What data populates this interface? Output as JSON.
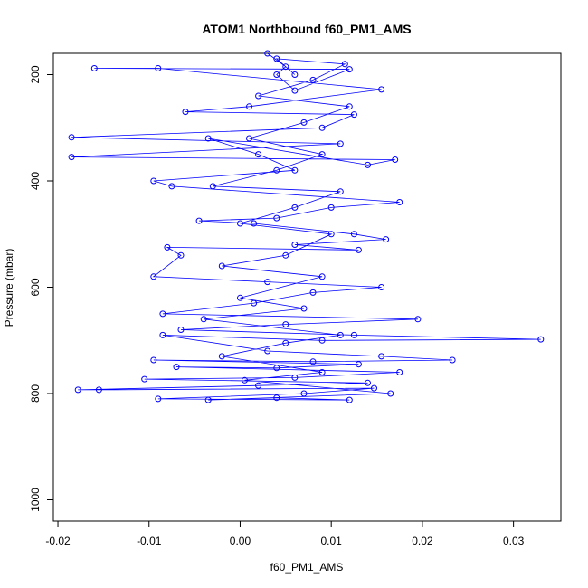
{
  "chart_data": {
    "type": "scatter",
    "title": "ATOM1 Northbound f60_PM1_AMS",
    "xlabel": "f60_PM1_AMS",
    "ylabel": "Pressure (mbar)",
    "xlim": [
      -0.0205,
      0.0352
    ],
    "ylim": [
      1040,
      160
    ],
    "y_reversed": true,
    "x_ticks": [
      {
        "value": -0.02,
        "label": "-0.02"
      },
      {
        "value": -0.01,
        "label": "-0.01"
      },
      {
        "value": 0.0,
        "label": "0.00"
      },
      {
        "value": 0.01,
        "label": "0.01"
      },
      {
        "value": 0.02,
        "label": "0.02"
      },
      {
        "value": 0.03,
        "label": "0.03"
      }
    ],
    "y_ticks": [
      {
        "value": 200,
        "label": "200"
      },
      {
        "value": 400,
        "label": "400"
      },
      {
        "value": 600,
        "label": "600"
      },
      {
        "value": 800,
        "label": "800"
      },
      {
        "value": 1000,
        "label": "1000"
      }
    ],
    "series_color": "#0000ff",
    "marker": "open-circle",
    "connected": true,
    "points": [
      [
        0.003,
        160
      ],
      [
        0.005,
        185
      ],
      [
        0.004,
        200
      ],
      [
        0.006,
        230
      ],
      [
        0.012,
        190
      ],
      [
        -0.016,
        188
      ],
      [
        -0.009,
        188
      ],
      [
        0.0155,
        228
      ],
      [
        0.001,
        260
      ],
      [
        -0.006,
        270
      ],
      [
        0.0125,
        275
      ],
      [
        0.009,
        300
      ],
      [
        -0.0185,
        318
      ],
      [
        0.011,
        330
      ],
      [
        -0.0185,
        355
      ],
      [
        0.017,
        360
      ],
      [
        0.014,
        370
      ],
      [
        -0.0035,
        320
      ],
      [
        0.002,
        350
      ],
      [
        0.006,
        380
      ],
      [
        -0.0095,
        400
      ],
      [
        -0.0075,
        410
      ],
      [
        0.0175,
        440
      ],
      [
        0.01,
        450
      ],
      [
        0.004,
        470
      ],
      [
        -0.0045,
        475
      ],
      [
        0.0015,
        480
      ],
      [
        0.0125,
        500
      ],
      [
        0.016,
        510
      ],
      [
        0.006,
        520
      ],
      [
        0.013,
        530
      ],
      [
        -0.008,
        525
      ],
      [
        -0.0065,
        540
      ],
      [
        -0.0095,
        580
      ],
      [
        0.003,
        590
      ],
      [
        0.0155,
        600
      ],
      [
        0.008,
        610
      ],
      [
        0.0015,
        630
      ],
      [
        -0.0085,
        650
      ],
      [
        0.0195,
        660
      ],
      [
        0.005,
        670
      ],
      [
        -0.0065,
        680
      ],
      [
        0.0125,
        690
      ],
      [
        0.033,
        698
      ],
      [
        0.009,
        700
      ],
      [
        -0.0085,
        690
      ],
      [
        0.003,
        720
      ],
      [
        0.0155,
        730
      ],
      [
        0.0233,
        737
      ],
      [
        0.008,
        740
      ],
      [
        -0.0095,
        737
      ],
      [
        0.013,
        745
      ],
      [
        0.004,
        752
      ],
      [
        -0.007,
        750
      ],
      [
        0.0175,
        760
      ],
      [
        0.006,
        770
      ],
      [
        -0.0105,
        773
      ],
      [
        0.014,
        780
      ],
      [
        0.002,
        785
      ],
      [
        -0.0178,
        793
      ],
      [
        -0.0155,
        793
      ],
      [
        0.0147,
        790
      ],
      [
        0.007,
        800
      ],
      [
        -0.009,
        810
      ],
      [
        0.012,
        812
      ],
      [
        0.004,
        808
      ],
      [
        -0.0035,
        812
      ],
      [
        0.0165,
        800
      ],
      [
        0.0005,
        775
      ],
      [
        0.009,
        760
      ],
      [
        -0.002,
        730
      ],
      [
        0.005,
        705
      ],
      [
        0.011,
        690
      ],
      [
        -0.004,
        660
      ],
      [
        0.007,
        640
      ],
      [
        0.0,
        620
      ],
      [
        0.009,
        580
      ],
      [
        -0.002,
        560
      ],
      [
        0.005,
        540
      ],
      [
        0.01,
        500
      ],
      [
        0.0,
        480
      ],
      [
        0.006,
        450
      ],
      [
        0.011,
        420
      ],
      [
        -0.003,
        410
      ],
      [
        0.004,
        380
      ],
      [
        0.009,
        350
      ],
      [
        0.001,
        320
      ],
      [
        0.007,
        290
      ],
      [
        0.012,
        260
      ],
      [
        0.002,
        240
      ],
      [
        0.008,
        210
      ],
      [
        0.0115,
        180
      ],
      [
        0.004,
        170
      ],
      [
        0.006,
        200
      ]
    ]
  }
}
